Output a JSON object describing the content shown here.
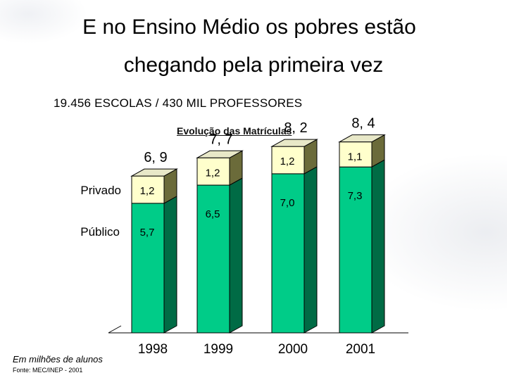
{
  "slide": {
    "title_line1": "E no Ensino Médio os pobres estão",
    "title_line2": "chegando pela primeira vez",
    "subtitle": "19.456 ESCOLAS / 430 MIL PROFESSORES",
    "units_note": "Em milhões de alunos",
    "source": "Fonte: MEC/INEP - 2001"
  },
  "colors": {
    "publico_fill": "#00cc88",
    "publico_side": "#006b45",
    "privado_fill": "#ffffcc",
    "privado_side": "#6b6b3a",
    "top_face": "#e8e8c8"
  },
  "chart_data": {
    "type": "bar",
    "stacked": true,
    "title": "Evolução das Matrículas",
    "categories": [
      "1998",
      "1999",
      "2000",
      "2001"
    ],
    "series": [
      {
        "name": "Público",
        "values": [
          5.7,
          6.5,
          7.0,
          7.3
        ],
        "labels": [
          "5,7",
          "6,5",
          "7,0",
          "7,3"
        ]
      },
      {
        "name": "Privado",
        "values": [
          1.2,
          1.2,
          1.2,
          1.1
        ],
        "labels": [
          "1,2",
          "1,2",
          "1,2",
          "1,1"
        ]
      }
    ],
    "totals": [
      6.9,
      7.7,
      8.2,
      8.4
    ],
    "total_labels": [
      "6, 9",
      "7, 7",
      "8, 2",
      "8, 4"
    ],
    "xlabel": "",
    "ylabel": "",
    "ylim": [
      0,
      8.4
    ]
  }
}
